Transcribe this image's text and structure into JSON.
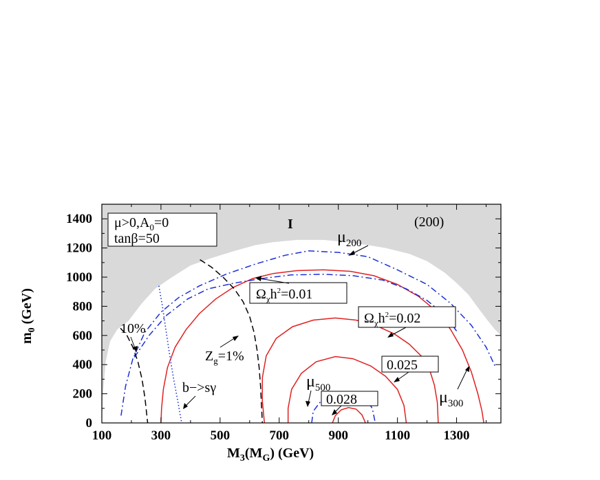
{
  "chart_data": {
    "type": "line",
    "xlabel_main": "M",
    "xlabel_sub1": "3",
    "xlabel_paren": "(M",
    "xlabel_sub2": "G",
    "xlabel_tail": ")  (GeV)",
    "ylabel_main": "m",
    "ylabel_sub": "0",
    "ylabel_tail": " (GeV)",
    "xlim": [
      100,
      1450
    ],
    "ylim": [
      0,
      1500
    ],
    "xticks": [
      100,
      300,
      500,
      700,
      900,
      1100,
      1300
    ],
    "yticks": [
      0,
      200,
      400,
      600,
      800,
      1000,
      1200,
      1400
    ],
    "grid": false,
    "colors": {
      "excluded": "#d9d9d9",
      "relic": "#e02020",
      "mu": "#1a2fd6",
      "zg": "#000000",
      "bsg": "#1a2fd6"
    },
    "excluded_region_label": "I",
    "panel_label": "(200)",
    "param_box": {
      "line1": "μ>0,A",
      "line1_sub": "0",
      "line1_tail": "=0",
      "line2": "tanβ=50"
    },
    "excluded_boundary": [
      [
        100,
        0
      ],
      [
        104,
        200
      ],
      [
        113,
        420
      ],
      [
        128,
        560
      ],
      [
        152,
        640
      ],
      [
        190,
        700
      ],
      [
        235,
        820
      ],
      [
        280,
        920
      ],
      [
        330,
        990
      ],
      [
        400,
        1080
      ],
      [
        470,
        1130
      ],
      [
        550,
        1180
      ],
      [
        620,
        1220
      ],
      [
        680,
        1240
      ],
      [
        760,
        1255
      ],
      [
        850,
        1255
      ],
      [
        930,
        1240
      ],
      [
        1000,
        1220
      ],
      [
        1060,
        1200
      ],
      [
        1140,
        1160
      ],
      [
        1200,
        1110
      ],
      [
        1260,
        1030
      ],
      [
        1300,
        960
      ],
      [
        1340,
        880
      ],
      [
        1380,
        770
      ],
      [
        1410,
        690
      ],
      [
        1430,
        640
      ],
      [
        1450,
        600
      ]
    ],
    "series": [
      {
        "name": "Ω_χh²=0.01",
        "label": "Ω",
        "label_sub": "χ",
        "label_tail": "h",
        "label_sup": "2",
        "label_end": "=0.01",
        "style": "solid",
        "color": "#e02020",
        "points": [
          [
            300,
            0
          ],
          [
            302,
            100
          ],
          [
            308,
            230
          ],
          [
            322,
            380
          ],
          [
            348,
            520
          ],
          [
            385,
            640
          ],
          [
            430,
            750
          ],
          [
            485,
            850
          ],
          [
            545,
            930
          ],
          [
            610,
            990
          ],
          [
            680,
            1025
          ],
          [
            760,
            1045
          ],
          [
            850,
            1050
          ],
          [
            940,
            1040
          ],
          [
            1020,
            1010
          ],
          [
            1100,
            950
          ],
          [
            1170,
            870
          ],
          [
            1230,
            770
          ],
          [
            1280,
            640
          ],
          [
            1320,
            500
          ],
          [
            1350,
            350
          ],
          [
            1372,
            200
          ],
          [
            1386,
            80
          ],
          [
            1392,
            0
          ]
        ]
      },
      {
        "name": "Ω_χh²=0.02",
        "label": "Ω",
        "label_sub": "χ",
        "label_tail": "h",
        "label_sup": "2",
        "label_end": "=0.02",
        "style": "solid",
        "color": "#e02020",
        "points": [
          [
            650,
            0
          ],
          [
            643,
            150
          ],
          [
            643,
            310
          ],
          [
            656,
            460
          ],
          [
            690,
            580
          ],
          [
            745,
            660
          ],
          [
            815,
            705
          ],
          [
            890,
            720
          ],
          [
            960,
            705
          ],
          [
            1030,
            665
          ],
          [
            1090,
            610
          ],
          [
            1140,
            540
          ],
          [
            1180,
            460
          ],
          [
            1208,
            370
          ],
          [
            1225,
            260
          ],
          [
            1235,
            140
          ],
          [
            1238,
            0
          ]
        ]
      },
      {
        "name": "0.025",
        "label": "0.025",
        "style": "solid",
        "color": "#e02020",
        "points": [
          [
            730,
            0
          ],
          [
            730,
            100
          ],
          [
            742,
            230
          ],
          [
            775,
            340
          ],
          [
            825,
            420
          ],
          [
            890,
            455
          ],
          [
            950,
            440
          ],
          [
            1010,
            390
          ],
          [
            1060,
            320
          ],
          [
            1100,
            230
          ],
          [
            1122,
            120
          ],
          [
            1130,
            0
          ]
        ]
      },
      {
        "name": "0.028",
        "label": "0.028",
        "style": "solid",
        "color": "#e02020",
        "points": [
          [
            880,
            0
          ],
          [
            890,
            50
          ],
          [
            910,
            90
          ],
          [
            935,
            105
          ],
          [
            960,
            95
          ],
          [
            980,
            55
          ],
          [
            992,
            0
          ]
        ]
      },
      {
        "name": "μ_200",
        "label": "μ",
        "label_sub": "200",
        "style": "dashdot",
        "color": "#1a2fd6",
        "points": [
          [
            165,
            50
          ],
          [
            180,
            250
          ],
          [
            205,
            440
          ],
          [
            245,
            620
          ],
          [
            300,
            760
          ],
          [
            360,
            860
          ],
          [
            430,
            940
          ],
          [
            520,
            1020
          ],
          [
            620,
            1090
          ],
          [
            720,
            1150
          ],
          [
            800,
            1180
          ],
          [
            900,
            1170
          ],
          [
            1000,
            1140
          ],
          [
            1100,
            1050
          ],
          [
            1200,
            950
          ],
          [
            1280,
            820
          ],
          [
            1350,
            670
          ],
          [
            1400,
            520
          ],
          [
            1430,
            390
          ]
        ]
      },
      {
        "name": "μ_300",
        "label": "μ",
        "label_sub": "300",
        "style": "dashdot",
        "color": "#1a2fd6",
        "points": [
          [
            210,
            450
          ],
          [
            260,
            600
          ],
          [
            320,
            740
          ],
          [
            390,
            850
          ],
          [
            460,
            920
          ],
          [
            550,
            960
          ],
          [
            640,
            990
          ],
          [
            740,
            1015
          ],
          [
            850,
            1020
          ],
          [
            950,
            1010
          ],
          [
            1050,
            980
          ],
          [
            1130,
            920
          ],
          [
            1200,
            840
          ],
          [
            1260,
            740
          ],
          [
            1300,
            630
          ]
        ]
      },
      {
        "name": "μ_500",
        "label": "μ",
        "label_sub": "500",
        "style": "dashdot",
        "color": "#1a2fd6",
        "points": [
          [
            810,
            0
          ],
          [
            815,
            80
          ],
          [
            845,
            160
          ],
          [
            880,
            200
          ],
          [
            920,
            215
          ],
          [
            960,
            205
          ],
          [
            995,
            160
          ],
          [
            1015,
            100
          ],
          [
            1025,
            0
          ]
        ]
      },
      {
        "name": "Z_g=1%",
        "label": "Z",
        "label_sub": "g",
        "label_tail": "=1%",
        "style": "dashed",
        "color": "#000000",
        "points": [
          [
            432,
            1120
          ],
          [
            470,
            1070
          ],
          [
            510,
            1000
          ],
          [
            548,
            920
          ],
          [
            578,
            830
          ],
          [
            600,
            730
          ],
          [
            615,
            620
          ],
          [
            625,
            500
          ],
          [
            632,
            380
          ],
          [
            637,
            250
          ],
          [
            640,
            120
          ],
          [
            643,
            0
          ]
        ]
      },
      {
        "name": "10%",
        "label": "10%",
        "style": "dashed",
        "color": "#000000",
        "points": [
          [
            163,
            650
          ],
          [
            185,
            600
          ],
          [
            205,
            520
          ],
          [
            222,
            420
          ],
          [
            236,
            300
          ],
          [
            246,
            170
          ],
          [
            255,
            0
          ]
        ]
      },
      {
        "name": "b−>sγ",
        "label": "b−>sγ",
        "style": "dotted",
        "color": "#1a2fd6",
        "points": [
          [
            293,
            940
          ],
          [
            305,
            800
          ],
          [
            318,
            620
          ],
          [
            330,
            460
          ],
          [
            343,
            300
          ],
          [
            356,
            160
          ],
          [
            370,
            0
          ]
        ]
      }
    ]
  }
}
